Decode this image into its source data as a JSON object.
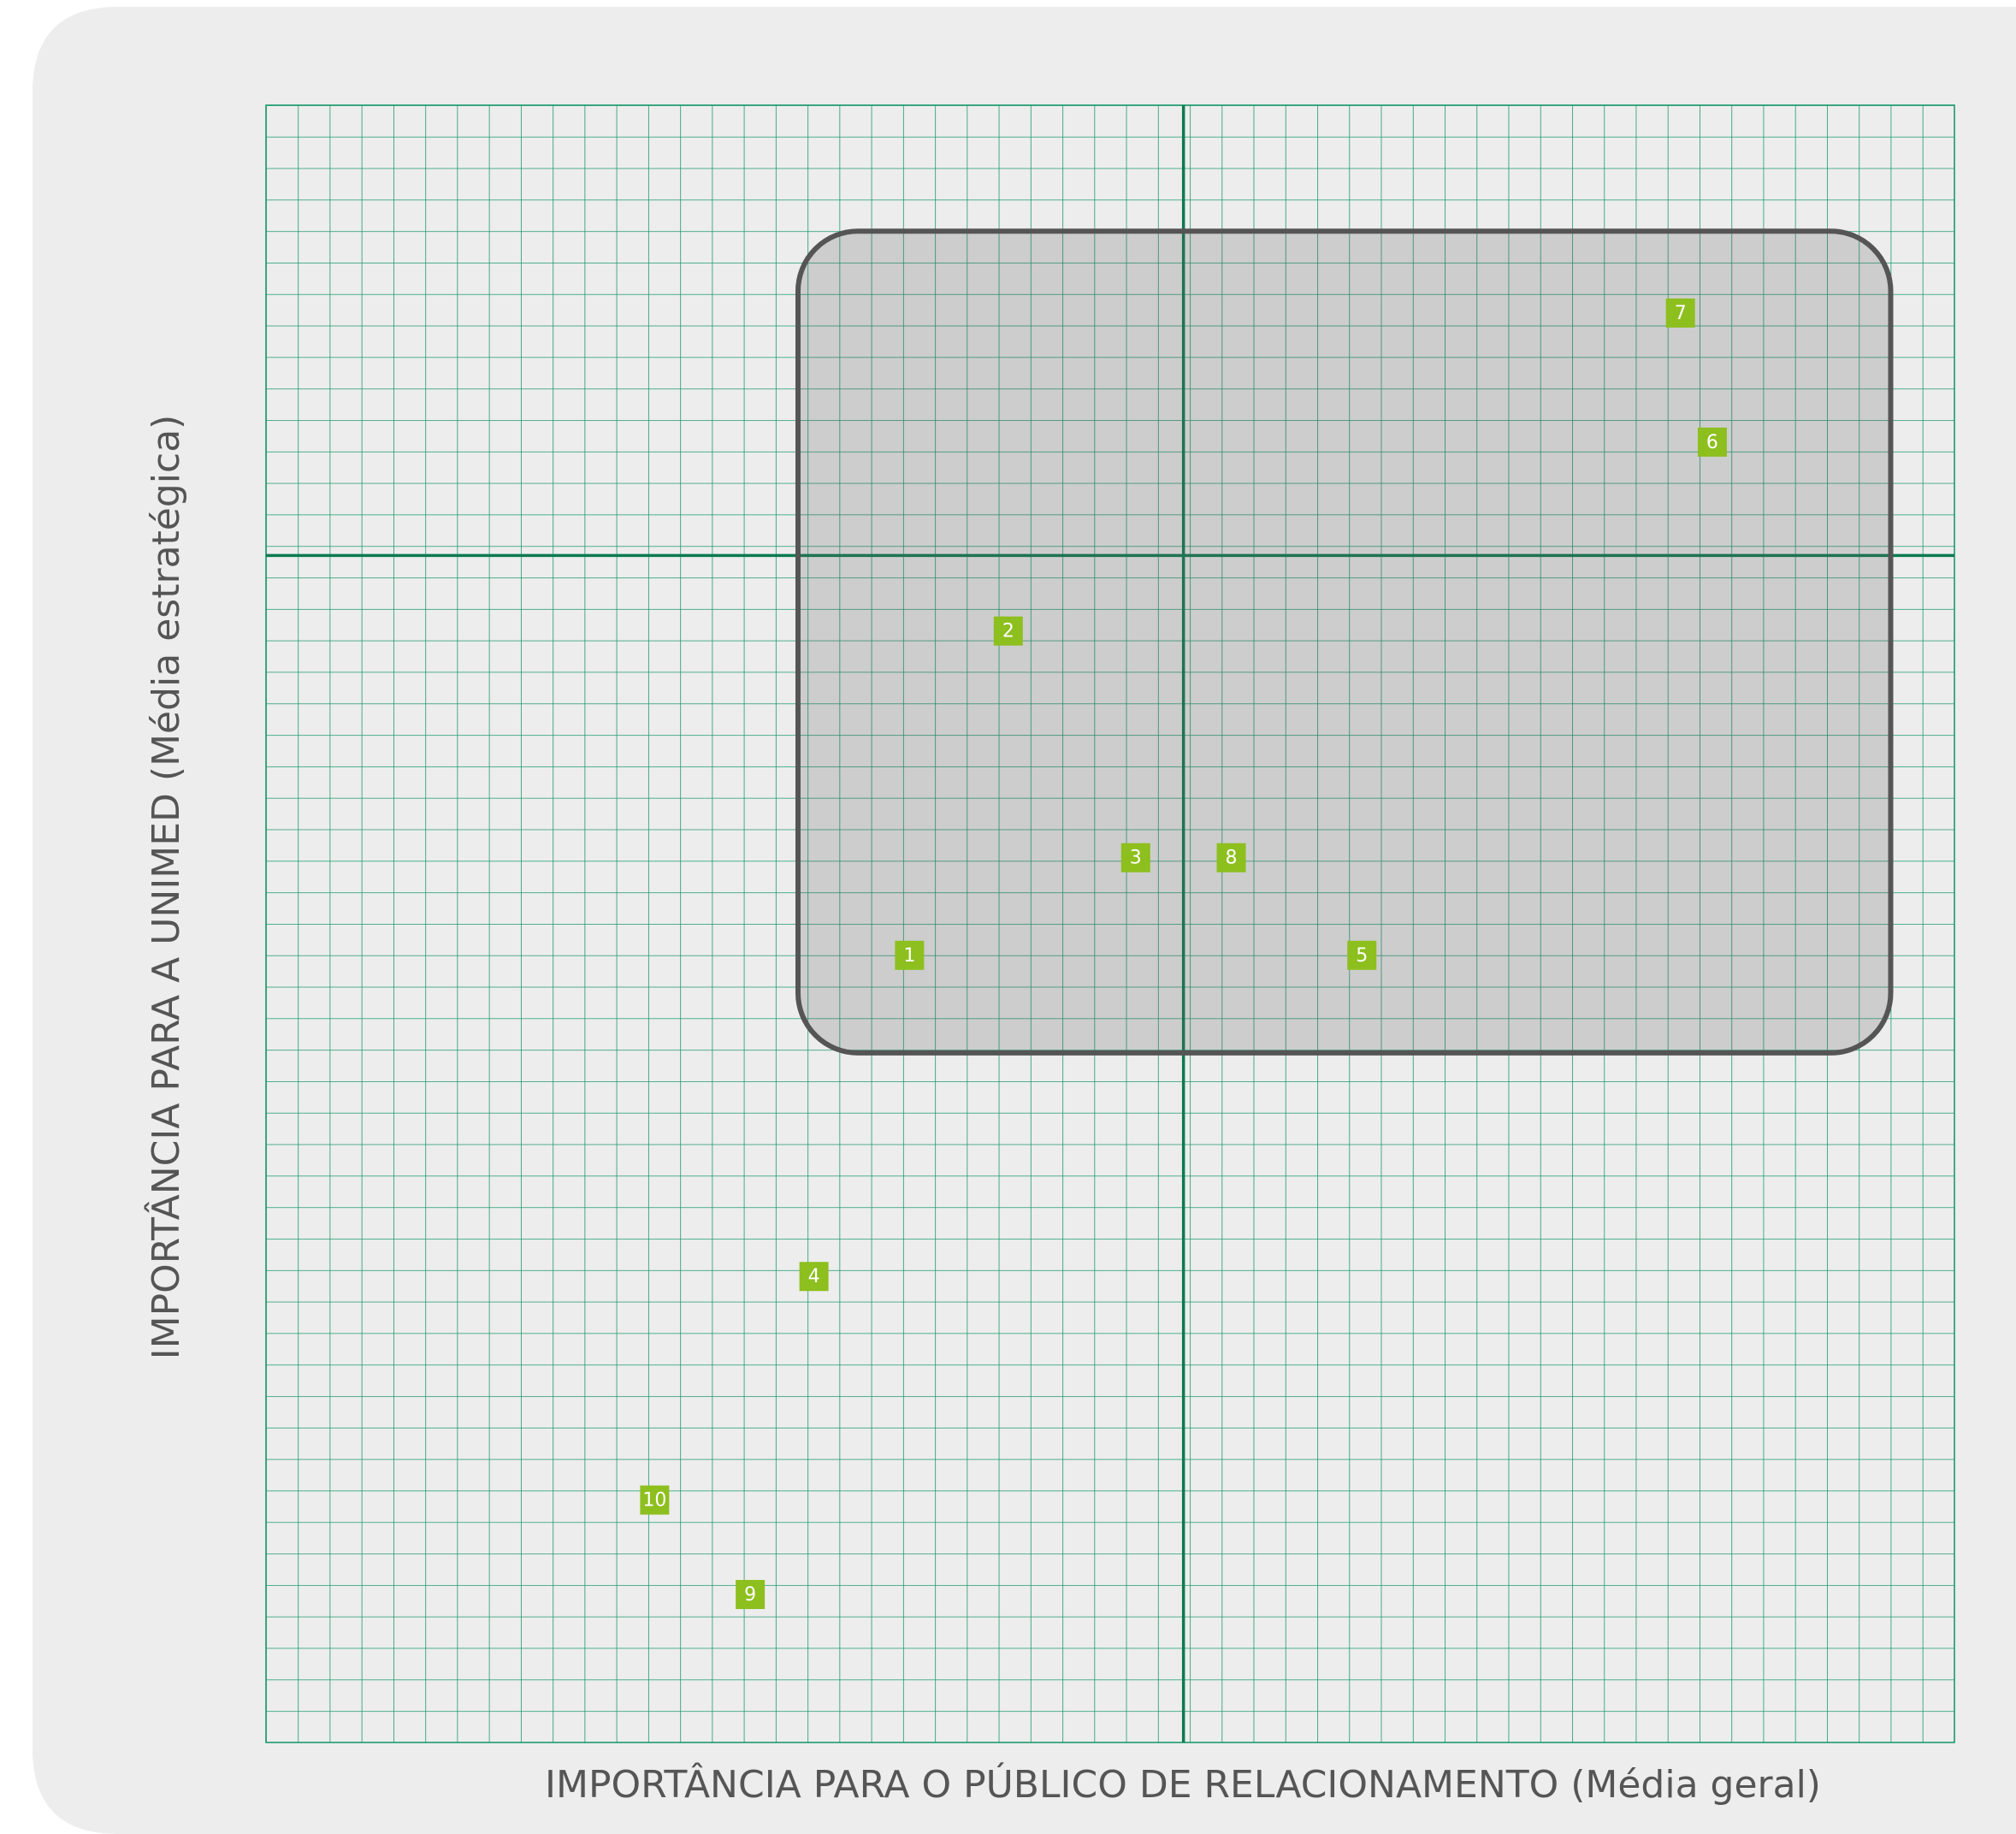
{
  "chart_data": {
    "type": "scatter",
    "x_label": "IMPORTÂNCIA PARA O PÚBLICO DE RELACIONAMENTO (Média geral)",
    "y_label": "IMPORTÂNCIA PARA A UNIMED (Média estratégica)",
    "xlim": [
      0,
      53
    ],
    "ylim": [
      0,
      52
    ],
    "grid": true,
    "grid_color": "#1c9a6c",
    "x_divider": 28.8,
    "y_divider": 37.7,
    "divider_color": "#0d7a50",
    "highlight": {
      "xlim": [
        16.7,
        51.0
      ],
      "ylim": [
        21.9,
        48.0
      ]
    },
    "color": "#8dbf1e",
    "labels": [
      "1",
      "2",
      "3",
      "4",
      "5",
      "6",
      "7",
      "8",
      "9",
      "10"
    ],
    "x": [
      20.2,
      23.3,
      27.3,
      17.2,
      34.4,
      45.4,
      44.4,
      30.3,
      15.2,
      12.2
    ],
    "values": [
      25.0,
      35.3,
      28.1,
      14.8,
      25.0,
      41.3,
      45.4,
      28.1,
      4.7,
      7.7
    ]
  }
}
